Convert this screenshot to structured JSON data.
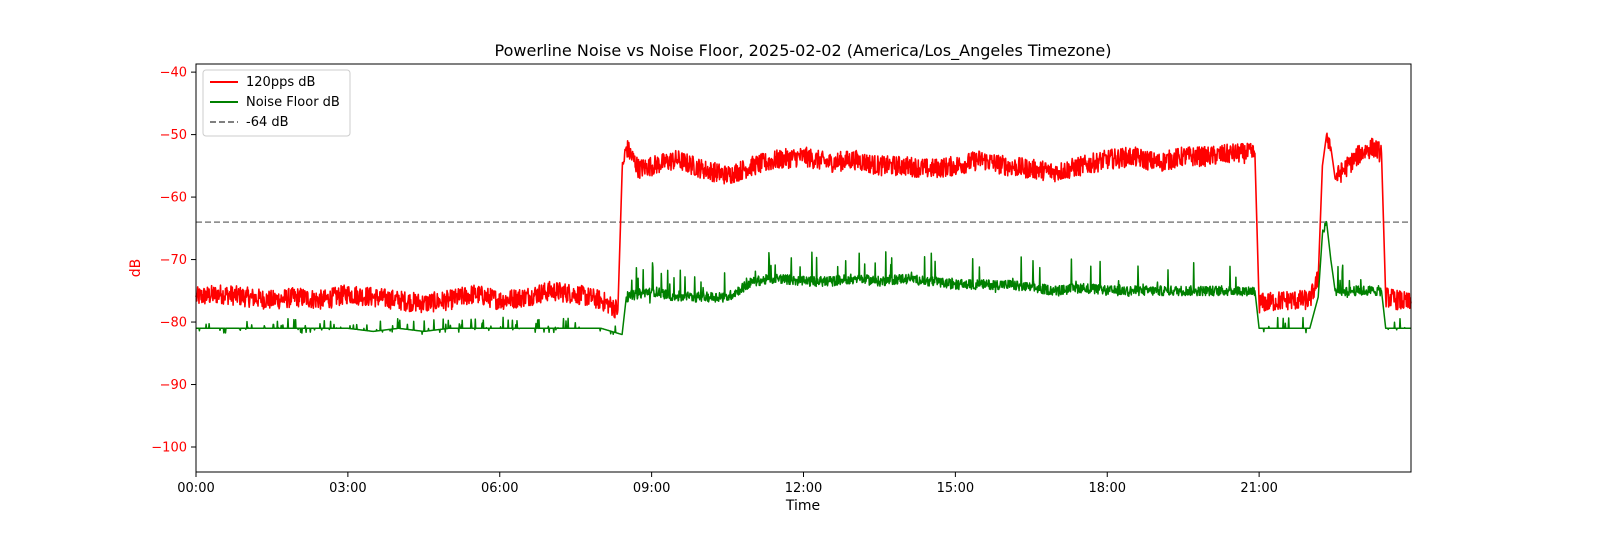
{
  "chart_data": {
    "type": "line",
    "title": "Powerline Noise vs Noise Floor, 2025-02-02 (America/Los_Angeles Timezone)",
    "xlabel": "Time",
    "ylabel": "dB",
    "xlim": [
      "00:00",
      "24:00"
    ],
    "ylim": [
      -104,
      -38.7
    ],
    "x_ticks": [
      "00:00",
      "03:00",
      "06:00",
      "09:00",
      "12:00",
      "15:00",
      "18:00",
      "21:00"
    ],
    "y_ticks": [
      -40,
      -50,
      -60,
      -70,
      -80,
      -90,
      -100
    ],
    "grid": false,
    "legend_position": "top-left",
    "reference_line": {
      "name": "-64 dB",
      "y": -64,
      "color": "#808080",
      "style": "dashed"
    },
    "series": [
      {
        "name": "120pps dB",
        "color": "#ff0000",
        "points": [
          [
            "00:00",
            -76
          ],
          [
            "00:30",
            -75.5
          ],
          [
            "01:00",
            -76
          ],
          [
            "01:30",
            -76.5
          ],
          [
            "02:00",
            -76
          ],
          [
            "02:30",
            -76.5
          ],
          [
            "03:00",
            -75.5
          ],
          [
            "03:30",
            -76
          ],
          [
            "04:00",
            -76.5
          ],
          [
            "04:30",
            -77
          ],
          [
            "05:00",
            -76.5
          ],
          [
            "05:30",
            -75.5
          ],
          [
            "06:00",
            -76.5
          ],
          [
            "06:30",
            -76
          ],
          [
            "07:00",
            -75
          ],
          [
            "07:30",
            -75.5
          ],
          [
            "08:00",
            -76.5
          ],
          [
            "08:20",
            -78
          ],
          [
            "08:25",
            -56
          ],
          [
            "08:30",
            -52
          ],
          [
            "08:45",
            -55.5
          ],
          [
            "09:00",
            -55
          ],
          [
            "09:30",
            -54
          ],
          [
            "10:00",
            -55.5
          ],
          [
            "10:30",
            -56.5
          ],
          [
            "11:00",
            -55
          ],
          [
            "11:30",
            -54
          ],
          [
            "12:00",
            -53.5
          ],
          [
            "12:30",
            -54.5
          ],
          [
            "13:00",
            -54
          ],
          [
            "13:30",
            -55
          ],
          [
            "14:00",
            -55
          ],
          [
            "14:30",
            -55.5
          ],
          [
            "15:00",
            -55
          ],
          [
            "15:30",
            -54
          ],
          [
            "16:00",
            -55
          ],
          [
            "16:30",
            -55.5
          ],
          [
            "17:00",
            -56
          ],
          [
            "17:30",
            -55
          ],
          [
            "18:00",
            -54
          ],
          [
            "18:30",
            -53.5
          ],
          [
            "19:00",
            -54.5
          ],
          [
            "19:30",
            -53.5
          ],
          [
            "20:00",
            -53.5
          ],
          [
            "20:30",
            -53
          ],
          [
            "20:55",
            -53
          ],
          [
            "21:00",
            -77
          ],
          [
            "21:30",
            -76.5
          ],
          [
            "22:00",
            -76.5
          ],
          [
            "22:10",
            -73
          ],
          [
            "22:15",
            -55
          ],
          [
            "22:20",
            -50
          ],
          [
            "22:25",
            -52
          ],
          [
            "22:30",
            -57
          ],
          [
            "22:45",
            -55
          ],
          [
            "23:00",
            -53
          ],
          [
            "23:15",
            -52
          ],
          [
            "23:25",
            -53
          ],
          [
            "23:30",
            -76
          ],
          [
            "24:00",
            -77
          ]
        ]
      },
      {
        "name": "Noise Floor dB",
        "color": "#008000",
        "points": [
          [
            "00:00",
            -81
          ],
          [
            "01:00",
            -81
          ],
          [
            "02:00",
            -81
          ],
          [
            "03:00",
            -81
          ],
          [
            "03:30",
            -81.5
          ],
          [
            "04:00",
            -81
          ],
          [
            "04:30",
            -81.5
          ],
          [
            "05:00",
            -81
          ],
          [
            "05:30",
            -81
          ],
          [
            "06:00",
            -81
          ],
          [
            "07:00",
            -81
          ],
          [
            "08:00",
            -81
          ],
          [
            "08:25",
            -82
          ],
          [
            "08:30",
            -76
          ],
          [
            "09:00",
            -75
          ],
          [
            "09:30",
            -76
          ],
          [
            "10:00",
            -76
          ],
          [
            "10:30",
            -76
          ],
          [
            "11:00",
            -73.5
          ],
          [
            "11:30",
            -73
          ],
          [
            "12:00",
            -73.5
          ],
          [
            "12:30",
            -73.5
          ],
          [
            "13:00",
            -73
          ],
          [
            "13:30",
            -73.5
          ],
          [
            "14:00",
            -73
          ],
          [
            "14:30",
            -73.5
          ],
          [
            "15:00",
            -74
          ],
          [
            "15:30",
            -74
          ],
          [
            "16:00",
            -74
          ],
          [
            "16:30",
            -74.5
          ],
          [
            "17:00",
            -75
          ],
          [
            "17:30",
            -74.5
          ],
          [
            "18:00",
            -75
          ],
          [
            "18:30",
            -75
          ],
          [
            "19:00",
            -75
          ],
          [
            "19:30",
            -75
          ],
          [
            "20:00",
            -75
          ],
          [
            "20:30",
            -75
          ],
          [
            "20:55",
            -75
          ],
          [
            "21:00",
            -81
          ],
          [
            "21:30",
            -81
          ],
          [
            "22:00",
            -81
          ],
          [
            "22:10",
            -76
          ],
          [
            "22:15",
            -66
          ],
          [
            "22:20",
            -64
          ],
          [
            "22:25",
            -70
          ],
          [
            "22:30",
            -75
          ],
          [
            "23:00",
            -75
          ],
          [
            "23:25",
            -75
          ],
          [
            "23:30",
            -81
          ],
          [
            "24:00",
            -81
          ]
        ]
      }
    ]
  }
}
